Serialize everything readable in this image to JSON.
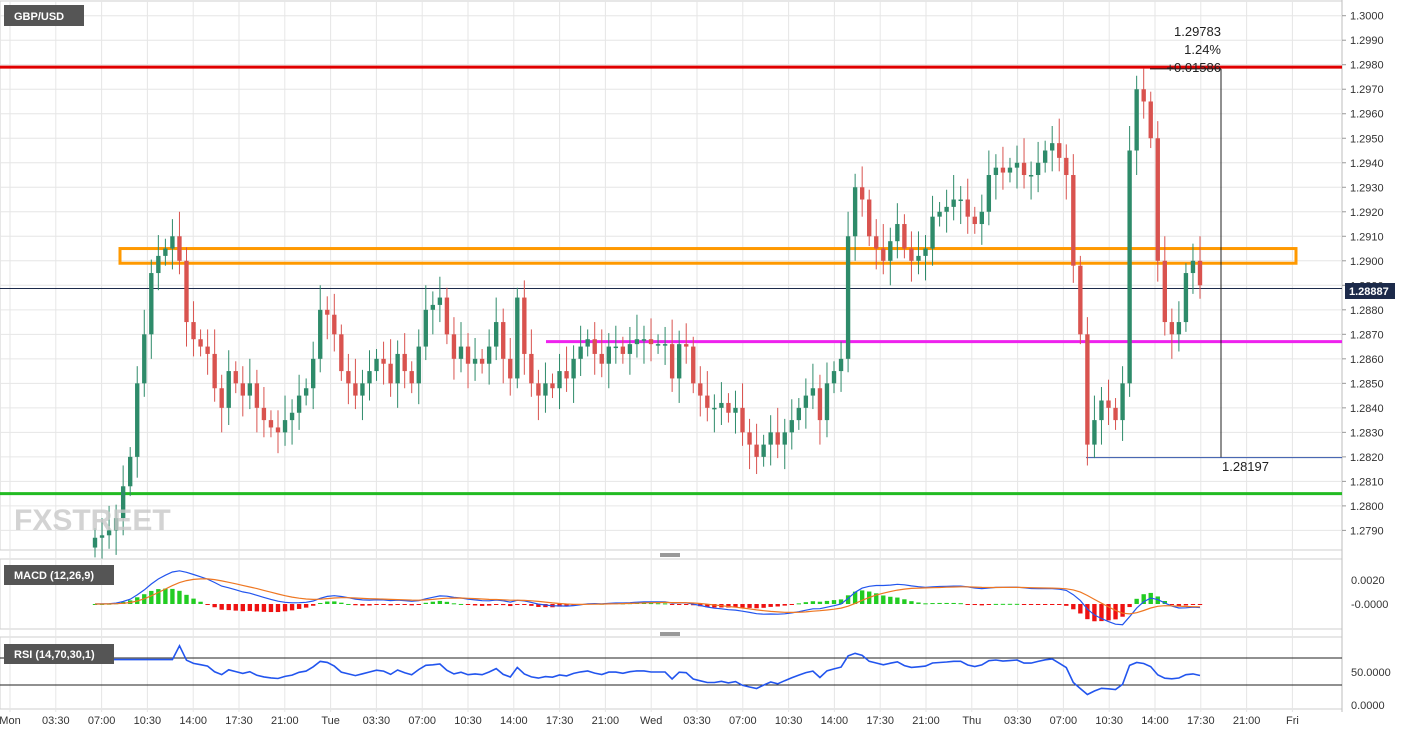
{
  "symbol": "GBP/USD",
  "chart_data": {
    "type": "candlestick",
    "title": "GBP/USD",
    "colors": {
      "up": "#2e8b6a",
      "down": "#d9534f",
      "grid": "#e6e6e6",
      "resistance": "#e00000",
      "support": "#22bb22",
      "zone": "#ff9900",
      "pivot": "#ee22ee",
      "macd": "#2255ee",
      "signal": "#ee7722",
      "rsi": "#2255ee"
    },
    "price_axis": {
      "min": 1.2782,
      "max": 1.3006,
      "ticks": [
        "1.2790",
        "1.2800",
        "1.2810",
        "1.2820",
        "1.2830",
        "1.2840",
        "1.2850",
        "1.2860",
        "1.2870",
        "1.2880",
        "1.2890",
        "1.2900",
        "1.2910",
        "1.2920",
        "1.2930",
        "1.2940",
        "1.2950",
        "1.2960",
        "1.2970",
        "1.2980",
        "1.2990",
        "1.3000"
      ]
    },
    "time_axis": [
      "Mon",
      "03:30",
      "07:00",
      "10:30",
      "14:00",
      "17:30",
      "21:00",
      "Tue",
      "03:30",
      "07:00",
      "10:30",
      "14:00",
      "17:30",
      "21:00",
      "Wed",
      "03:30",
      "07:00",
      "10:30",
      "14:00",
      "17:30",
      "21:00",
      "Thu",
      "03:30",
      "07:00",
      "10:30",
      "14:00",
      "17:30",
      "21:00",
      "Fri"
    ],
    "last_price": "1.28887",
    "levels": {
      "resistance": 1.2979,
      "support": 1.2805,
      "zone_top": 1.2905,
      "zone_bottom": 1.2899,
      "pivot": 1.2867
    },
    "measure": {
      "high": "1.29783",
      "low": "1.28197",
      "percent": "1.24%",
      "change": "+0.01586"
    },
    "watermark": "FXSTREET",
    "closes": [
      1.2787,
      1.2788,
      1.279,
      1.2795,
      1.2808,
      1.282,
      1.285,
      1.287,
      1.2895,
      1.2902,
      1.2905,
      1.291,
      1.29,
      1.2875,
      1.2868,
      1.2865,
      1.2862,
      1.2848,
      1.284,
      1.2855,
      1.285,
      1.2845,
      1.285,
      1.284,
      1.2835,
      1.2832,
      1.283,
      1.2835,
      1.2838,
      1.2845,
      1.2848,
      1.286,
      1.288,
      1.2878,
      1.287,
      1.2855,
      1.285,
      1.2845,
      1.285,
      1.2855,
      1.286,
      1.2858,
      1.285,
      1.2862,
      1.2855,
      1.285,
      1.2865,
      1.288,
      1.2882,
      1.2885,
      1.287,
      1.286,
      1.2865,
      1.2858,
      1.286,
      1.2858,
      1.2865,
      1.2875,
      1.286,
      1.2852,
      1.2885,
      1.2862,
      1.285,
      1.2845,
      1.285,
      1.2848,
      1.2855,
      1.2852,
      1.286,
      1.2865,
      1.2868,
      1.2862,
      1.2858,
      1.2865,
      1.2865,
      1.2862,
      1.2866,
      1.2868,
      1.2868,
      1.2866,
      1.2866,
      1.2866,
      1.2852,
      1.2866,
      1.2865,
      1.285,
      1.2845,
      1.284,
      1.284,
      1.2842,
      1.2838,
      1.284,
      1.283,
      1.2825,
      1.282,
      1.2825,
      1.283,
      1.2825,
      1.283,
      1.2835,
      1.284,
      1.2845,
      1.2848,
      1.2835,
      1.285,
      1.2855,
      1.286,
      1.291,
      1.293,
      1.2925,
      1.291,
      1.2905,
      1.29,
      1.2908,
      1.2915,
      1.2905,
      1.29,
      1.2902,
      1.2905,
      1.2918,
      1.292,
      1.2922,
      1.2925,
      1.2925,
      1.2918,
      1.2915,
      1.292,
      1.2935,
      1.2938,
      1.2936,
      1.2938,
      1.294,
      1.2935,
      1.2935,
      1.294,
      1.2945,
      1.2948,
      1.2942,
      1.2935,
      1.2898,
      1.287,
      1.2825,
      1.2835,
      1.2843,
      1.284,
      1.2835,
      1.285,
      1.2945,
      1.297,
      1.2965,
      1.295,
      1.29,
      1.2875,
      1.287,
      1.2875,
      1.2895,
      1.29,
      1.289
    ],
    "macd_axis": [
      "0.0020",
      "-0.0000"
    ],
    "rsi_axis": [
      "50.0000",
      "0.0000"
    ],
    "macd_label": "MACD (12,26,9)",
    "rsi_label": "RSI (14,70,30,1)"
  }
}
